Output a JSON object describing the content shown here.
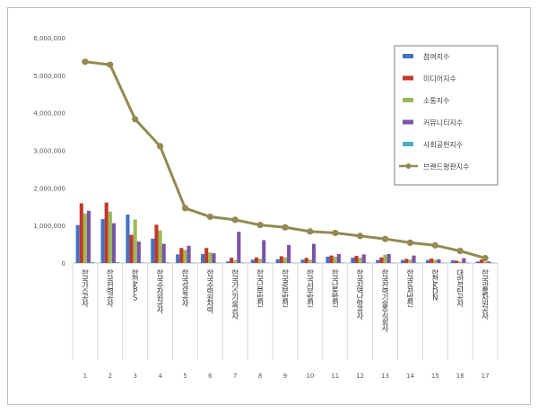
{
  "chart_data": {
    "type": "bar",
    "title": "",
    "xlabel": "",
    "ylabel": "",
    "ylim": [
      0,
      6000000
    ],
    "yticks": [
      0,
      1000000,
      2000000,
      3000000,
      4000000,
      5000000,
      6000000
    ],
    "ytick_labels": [
      "0",
      "1,000,000",
      "2,000,000",
      "3,000,000",
      "4,000,000",
      "5,000,000",
      "6,000,000"
    ],
    "grid": false,
    "legend_position": "right",
    "x_numbers": [
      "1",
      "2",
      "3",
      "4",
      "5",
      "6",
      "7",
      "8",
      "9",
      "10",
      "11",
      "12",
      "13",
      "14",
      "15",
      "16",
      "17"
    ],
    "categories": [
      "한국가스공사",
      "한국전력공사",
      "한전KPS",
      "한국수자원공사",
      "한국석유공사",
      "한국수력원자력",
      "한국가스기술공사",
      "한국남부발전",
      "한국중부발전",
      "한국서부발전",
      "한국남동발전",
      "한국지역난방공사",
      "한국전력기술주식회사",
      "한국동서발전",
      "한전KDN",
      "대한석탄공사",
      "한국광물자원공사"
    ],
    "series": [
      {
        "name": "참여지수",
        "type": "bar",
        "color": "#4472c4",
        "values": [
          1010000,
          1170000,
          1290000,
          650000,
          230000,
          240000,
          40000,
          90000,
          100000,
          90000,
          170000,
          140000,
          80000,
          80000,
          80000,
          70000,
          40000
        ]
      },
      {
        "name": "미디어지수",
        "type": "bar",
        "color": "#c0392b",
        "values": [
          1590000,
          1610000,
          750000,
          1020000,
          400000,
          400000,
          140000,
          150000,
          180000,
          140000,
          200000,
          190000,
          150000,
          110000,
          120000,
          60000,
          90000
        ]
      },
      {
        "name": "소통지수",
        "type": "bar",
        "color": "#9bbb59",
        "values": [
          1320000,
          1370000,
          1160000,
          870000,
          350000,
          280000,
          70000,
          110000,
          150000,
          90000,
          170000,
          140000,
          220000,
          90000,
          80000,
          40000,
          40000
        ]
      },
      {
        "name": "커뮤니티지수",
        "type": "bar",
        "color": "#7d54a5",
        "values": [
          1390000,
          1060000,
          570000,
          510000,
          460000,
          260000,
          830000,
          610000,
          480000,
          510000,
          240000,
          230000,
          240000,
          200000,
          100000,
          130000,
          40000
        ]
      },
      {
        "name": "사회공헌지수",
        "type": "bar",
        "color": "#4bacc6",
        "values": [
          25000,
          25000,
          15000,
          15000,
          10000,
          10000,
          10000,
          10000,
          10000,
          10000,
          10000,
          10000,
          10000,
          10000,
          10000,
          5000,
          5000
        ]
      },
      {
        "name": "브랜드평판지수",
        "type": "line",
        "color": "#938953",
        "values": [
          5360000,
          5280000,
          3830000,
          3110000,
          1460000,
          1230000,
          1150000,
          1010000,
          950000,
          840000,
          800000,
          720000,
          640000,
          540000,
          470000,
          320000,
          130000
        ]
      }
    ]
  }
}
